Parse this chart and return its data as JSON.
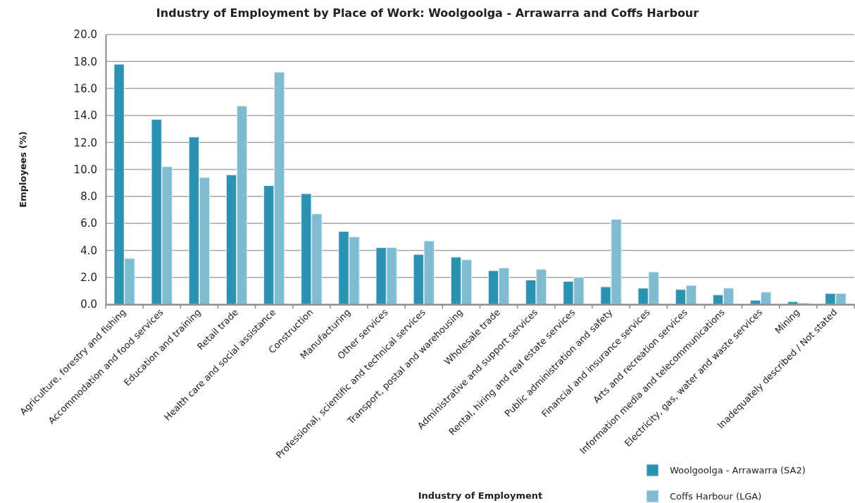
{
  "chart_data": {
    "type": "bar",
    "title": "Industry of Employment by Place of Work: Woolgoolga - Arrawarra and Coffs Harbour",
    "xlabel": "Industry of Employment",
    "ylabel": "Employees (%)",
    "categories": [
      "Agriculture, forestry and fishing",
      "Accommodation and food services",
      "Education and training",
      "Retail trade",
      "Health care and social assistance",
      "Construction",
      "Manufacturing",
      "Other services",
      "Professional, scientific and technical services",
      "Transport, postal and warehousing",
      "Wholesale trade",
      "Administrative and support services",
      "Rental, hiring and real estate services",
      "Public administration and safety",
      "Financial and insurance services",
      "Arts and recreation services",
      "Information media and telecommunications",
      "Electricity, gas, water and waste services",
      "Mining",
      "Inadequately described / Not stated"
    ],
    "series": [
      {
        "name": "Woolgoolga - Arrawarra (SA2)",
        "color": "#2b93b1",
        "values": [
          17.8,
          13.7,
          12.4,
          9.6,
          8.8,
          8.2,
          5.4,
          4.2,
          3.7,
          3.5,
          2.5,
          1.8,
          1.7,
          1.3,
          1.2,
          1.1,
          0.7,
          0.3,
          0.2,
          0.8
        ]
      },
      {
        "name": "Coffs Harbour (LGA)",
        "color": "#80bcd1",
        "values": [
          3.4,
          10.2,
          9.4,
          14.7,
          17.2,
          6.7,
          5.0,
          4.2,
          4.7,
          3.3,
          2.7,
          2.6,
          2.0,
          6.3,
          2.4,
          1.4,
          1.2,
          0.9,
          0.1,
          0.8
        ]
      }
    ],
    "ylim": [
      0,
      20
    ],
    "yticks": [
      {
        "value": 0,
        "label": "0.0"
      },
      {
        "value": 2,
        "label": "2.0"
      },
      {
        "value": 4,
        "label": "4.0"
      },
      {
        "value": 6,
        "label": "6.0"
      },
      {
        "value": 8,
        "label": "8.0"
      },
      {
        "value": 10,
        "label": "10.0"
      },
      {
        "value": 12,
        "label": "12.0"
      },
      {
        "value": 14,
        "label": "14.0"
      },
      {
        "value": 16,
        "label": "16.0"
      },
      {
        "value": 18,
        "label": "18.0"
      },
      {
        "value": 20,
        "label": "20.0"
      }
    ],
    "grid": "y",
    "legend": "bottom right"
  }
}
